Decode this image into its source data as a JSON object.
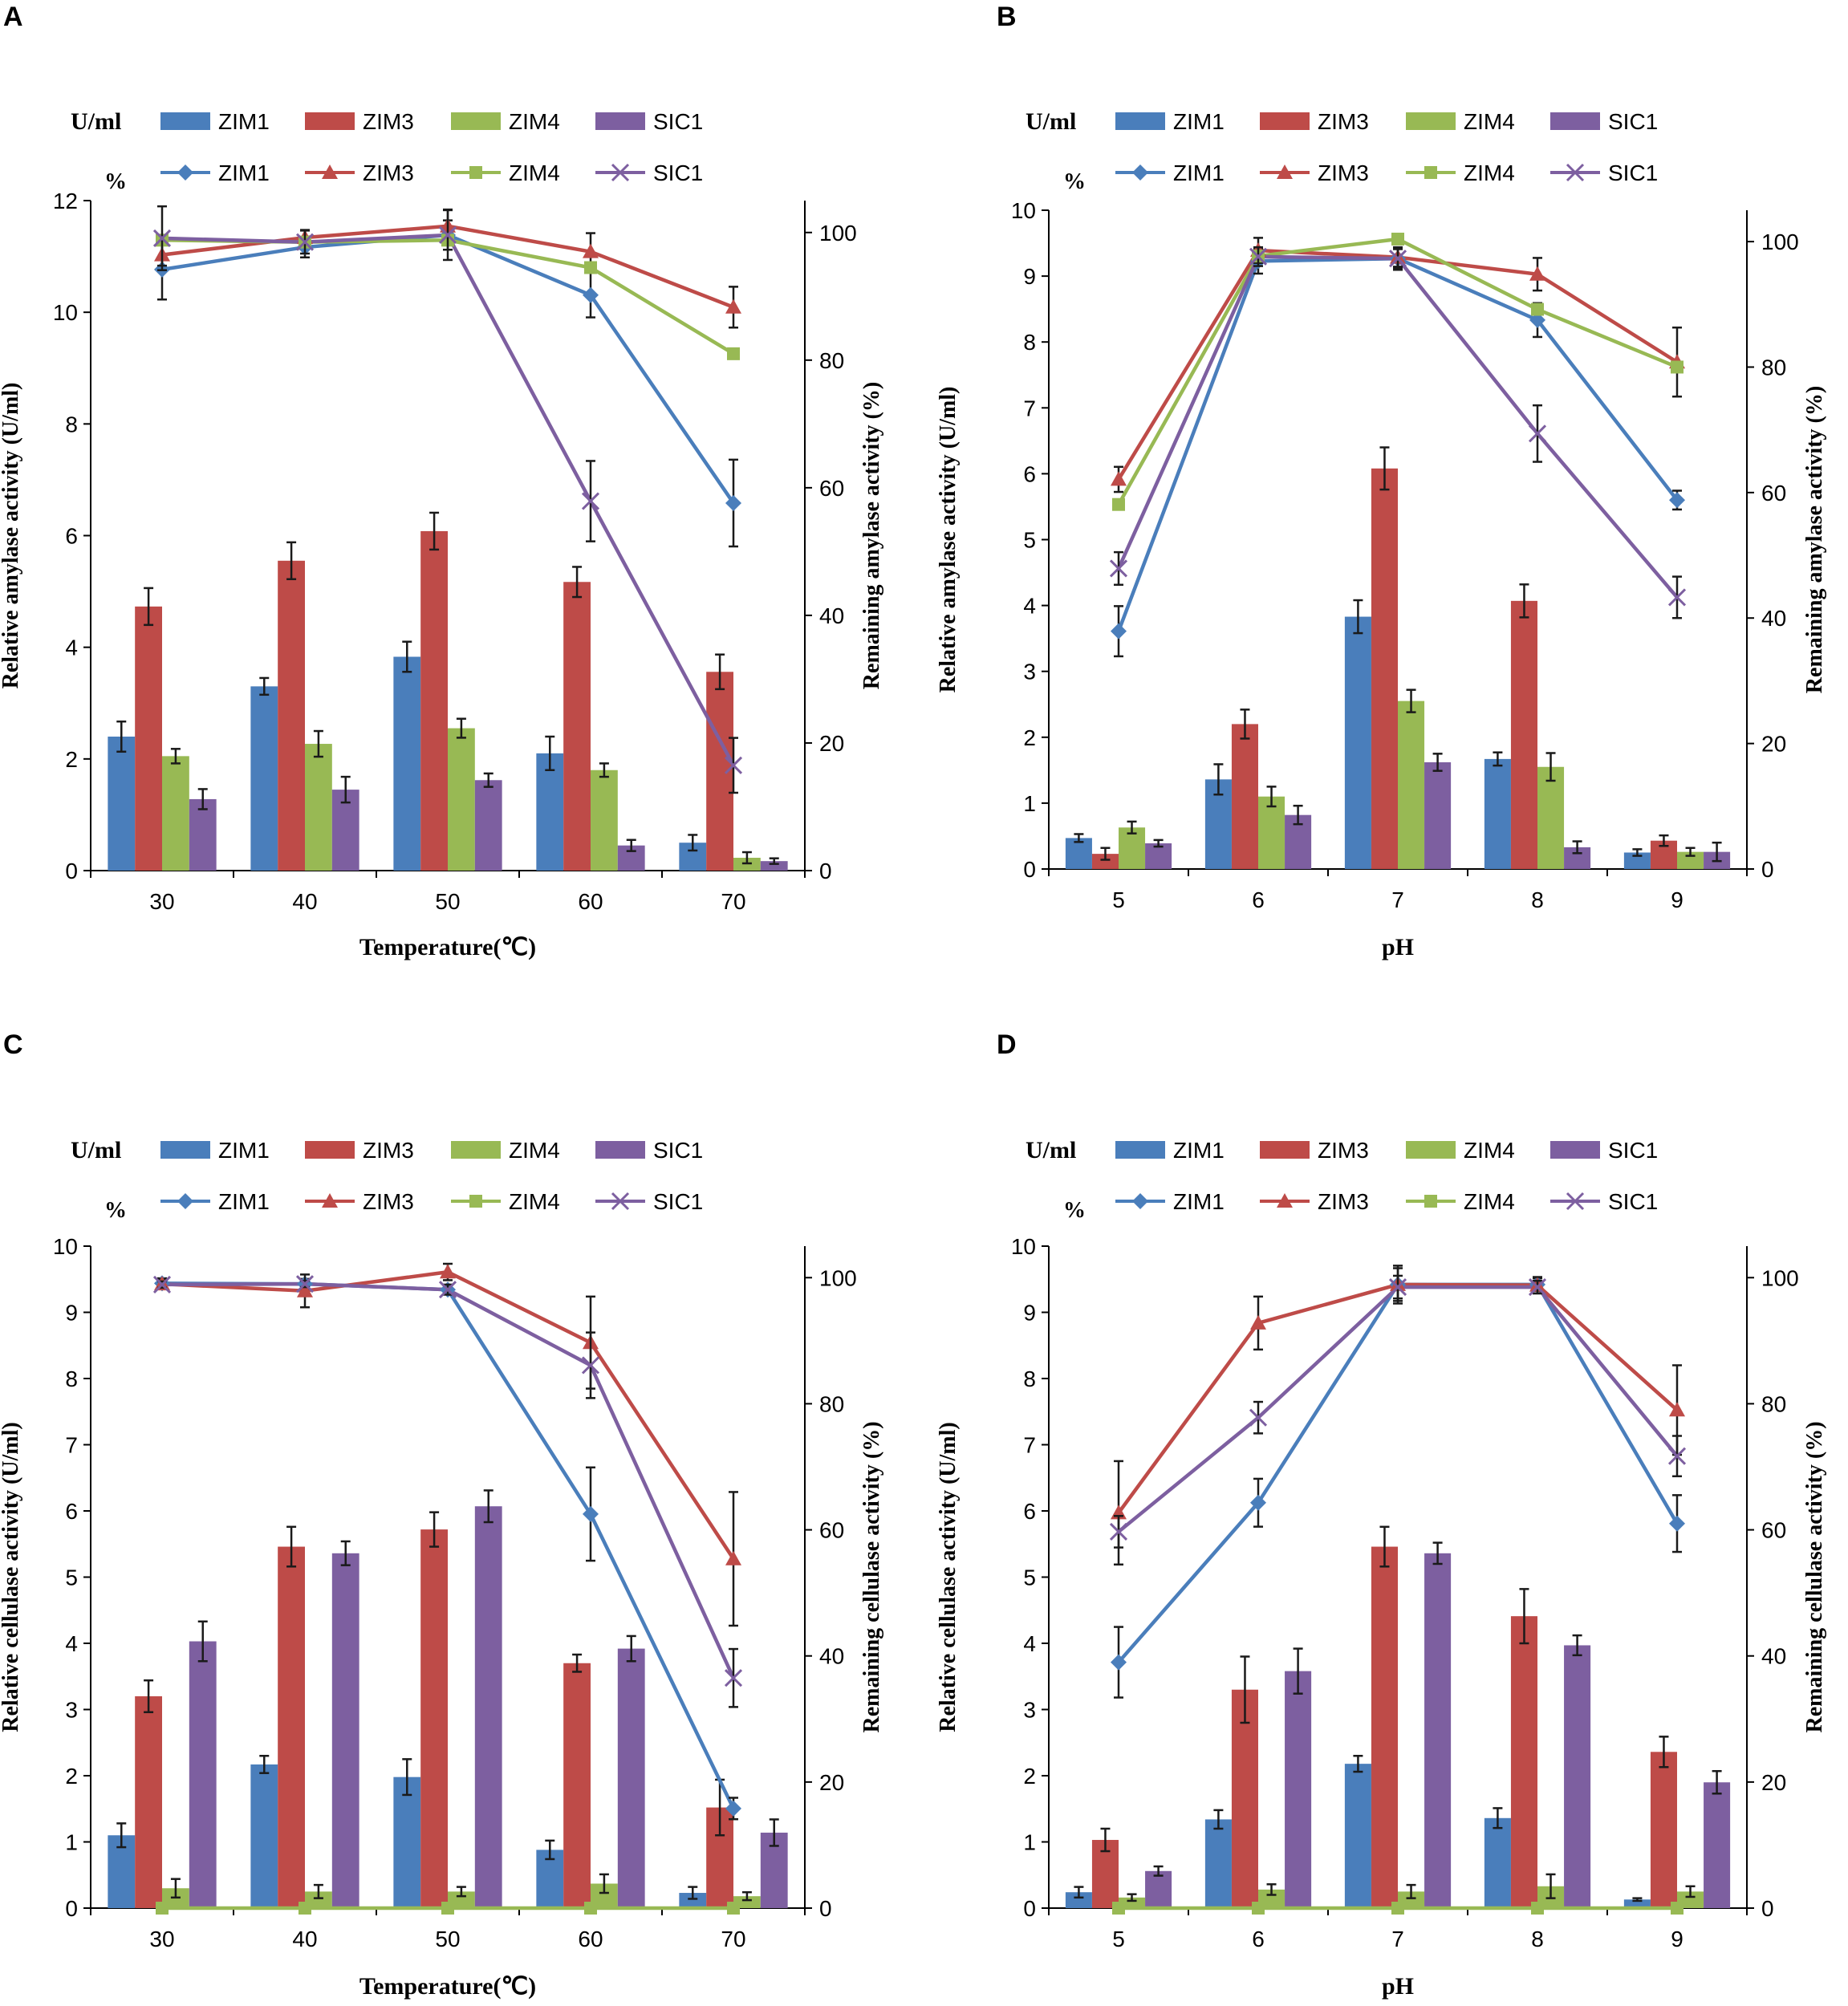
{
  "colors": {
    "ZIM1": "#4a7ebb",
    "ZIM3": "#be4b48",
    "ZIM4": "#98b954",
    "SIC1": "#7d5fa0"
  },
  "legend": {
    "bar_prefix": "U/ml",
    "line_prefix": "%",
    "names": [
      "ZIM1",
      "ZIM3",
      "ZIM4",
      "SIC1"
    ]
  },
  "chart_data": [
    {
      "panel": "A",
      "type": "bar+line",
      "xlabel": "Temperature(℃)",
      "ylabel_left": "Relative amylase activity (U/ml)",
      "ylabel_right": "Remaining amylase activity (%)",
      "categories": [
        "30",
        "40",
        "50",
        "60",
        "70"
      ],
      "left_range": [
        0,
        12
      ],
      "left_ticks": [
        0,
        2,
        4,
        6,
        8,
        10,
        12
      ],
      "right_range": [
        0,
        105
      ],
      "right_ticks": [
        0,
        20,
        40,
        60,
        80,
        100
      ],
      "bars": [
        {
          "name": "ZIM1",
          "values": [
            2.4,
            3.3,
            3.83,
            2.1,
            0.5
          ],
          "errors": [
            0.27,
            0.15,
            0.27,
            0.3,
            0.14
          ]
        },
        {
          "name": "ZIM3",
          "values": [
            4.73,
            5.55,
            6.08,
            5.17,
            3.56
          ],
          "errors": [
            0.33,
            0.33,
            0.33,
            0.27,
            0.31
          ]
        },
        {
          "name": "ZIM4",
          "values": [
            2.05,
            2.27,
            2.55,
            1.8,
            0.23
          ],
          "errors": [
            0.13,
            0.23,
            0.17,
            0.12,
            0.1
          ]
        },
        {
          "name": "SIC1",
          "values": [
            1.28,
            1.45,
            1.62,
            0.45,
            0.17
          ],
          "errors": [
            0.18,
            0.23,
            0.12,
            0.1,
            0.05
          ]
        }
      ],
      "lines": [
        {
          "name": "ZIM1",
          "marker": "diamond",
          "values": [
            94.2,
            97.7,
            99.6,
            90.2,
            57.6
          ],
          "errors": [
            4.7,
            1.6,
            2.3,
            3.5,
            6.8
          ]
        },
        {
          "name": "ZIM3",
          "marker": "triangle",
          "values": [
            96.5,
            99.2,
            101.0,
            97.0,
            88.3
          ],
          "errors": [
            1.7,
            1.2,
            2.6,
            2.9,
            3.2
          ]
        },
        {
          "name": "ZIM4",
          "marker": "square",
          "values": [
            98.8,
            98.5,
            98.8,
            94.5,
            81.0
          ],
          "errors": [
            0,
            0,
            0,
            0,
            0
          ]
        },
        {
          "name": "SIC1",
          "marker": "x",
          "values": [
            99.1,
            98.5,
            99.6,
            57.9,
            16.5
          ],
          "errors": [
            5.0,
            1.8,
            3.9,
            6.3,
            4.3
          ]
        }
      ]
    },
    {
      "panel": "B",
      "type": "bar+line",
      "xlabel": "pH",
      "ylabel_left": "Relative amylase activity (U/ml)",
      "ylabel_right": "Remaining amylase activity (%)",
      "categories": [
        "5",
        "6",
        "7",
        "8",
        "9"
      ],
      "left_range": [
        0,
        10
      ],
      "left_ticks": [
        0,
        1,
        2,
        3,
        4,
        5,
        6,
        7,
        8,
        9,
        10
      ],
      "right_range": [
        0,
        105
      ],
      "right_ticks": [
        0,
        20,
        40,
        60,
        80,
        100
      ],
      "bars": [
        {
          "name": "ZIM1",
          "values": [
            0.47,
            1.36,
            3.83,
            1.67,
            0.25
          ],
          "errors": [
            0.06,
            0.23,
            0.25,
            0.1,
            0.05
          ]
        },
        {
          "name": "ZIM3",
          "values": [
            0.23,
            2.2,
            6.08,
            4.07,
            0.43
          ],
          "errors": [
            0.09,
            0.22,
            0.32,
            0.25,
            0.08
          ]
        },
        {
          "name": "ZIM4",
          "values": [
            0.63,
            1.1,
            2.55,
            1.55,
            0.26
          ],
          "errors": [
            0.09,
            0.15,
            0.17,
            0.21,
            0.06
          ]
        },
        {
          "name": "SIC1",
          "values": [
            0.39,
            0.82,
            1.62,
            0.33,
            0.26
          ],
          "errors": [
            0.05,
            0.14,
            0.13,
            0.09,
            0.14
          ]
        }
      ],
      "lines": [
        {
          "name": "ZIM1",
          "marker": "diamond",
          "values": [
            37.9,
            96.9,
            97.3,
            87.5,
            58.8
          ],
          "errors": [
            4.0,
            2.0,
            1.5,
            2.7,
            1.5
          ]
        },
        {
          "name": "ZIM3",
          "marker": "triangle",
          "values": [
            62.1,
            98.6,
            97.5,
            94.8,
            80.8
          ],
          "errors": [
            2.0,
            2.0,
            1.5,
            2.6,
            5.5
          ]
        },
        {
          "name": "ZIM4",
          "marker": "square",
          "values": [
            58.1,
            97.7,
            100.4,
            89.2,
            80.0
          ],
          "errors": [
            0,
            0,
            0,
            0,
            0
          ]
        },
        {
          "name": "SIC1",
          "marker": "x",
          "values": [
            47.9,
            97.6,
            97.3,
            69.4,
            43.3
          ],
          "errors": [
            2.6,
            1.5,
            1.8,
            4.5,
            3.3
          ]
        }
      ]
    },
    {
      "panel": "C",
      "type": "bar+line",
      "xlabel": "Temperature(℃)",
      "ylabel_left": "Relative cellulase activity (U/ml)",
      "ylabel_right": "Remaining cellulase activity (%)",
      "categories": [
        "30",
        "40",
        "50",
        "60",
        "70"
      ],
      "left_range": [
        0,
        10
      ],
      "left_ticks": [
        0,
        1,
        2,
        3,
        4,
        5,
        6,
        7,
        8,
        9,
        10
      ],
      "right_range": [
        0,
        105
      ],
      "right_ticks": [
        0,
        20,
        40,
        60,
        80,
        100
      ],
      "bars": [
        {
          "name": "ZIM1",
          "values": [
            1.1,
            2.17,
            1.98,
            0.88,
            0.23
          ],
          "errors": [
            0.18,
            0.13,
            0.27,
            0.14,
            0.09
          ]
        },
        {
          "name": "ZIM3",
          "values": [
            3.2,
            5.46,
            5.72,
            3.7,
            1.52
          ],
          "errors": [
            0.24,
            0.3,
            0.26,
            0.13,
            0.42
          ]
        },
        {
          "name": "ZIM4",
          "values": [
            0.3,
            0.25,
            0.25,
            0.37,
            0.18
          ],
          "errors": [
            0.14,
            0.1,
            0.07,
            0.14,
            0.06
          ]
        },
        {
          "name": "SIC1",
          "values": [
            4.03,
            5.36,
            6.07,
            3.92,
            1.14
          ],
          "errors": [
            0.3,
            0.18,
            0.24,
            0.19,
            0.2
          ]
        }
      ],
      "lines": [
        {
          "name": "ZIM1",
          "marker": "diamond",
          "values": [
            99.1,
            99.0,
            98.1,
            62.5,
            15.8
          ],
          "errors": [
            0.8,
            0.8,
            0.5,
            7.4,
            1.7
          ]
        },
        {
          "name": "ZIM3",
          "marker": "triangle",
          "values": [
            99.0,
            97.9,
            100.9,
            89.7,
            55.4
          ],
          "errors": [
            0.8,
            2.6,
            1.3,
            7.3,
            10.6
          ]
        },
        {
          "name": "ZIM4",
          "marker": "square",
          "values": [
            0,
            0,
            0,
            0,
            0
          ],
          "errors": [
            0,
            0,
            0,
            0,
            0
          ]
        },
        {
          "name": "SIC1",
          "marker": "x",
          "values": [
            98.9,
            99.0,
            98.1,
            86.1,
            36.5
          ],
          "errors": [
            0.5,
            0.5,
            0.8,
            5.2,
            4.6
          ]
        }
      ]
    },
    {
      "panel": "D",
      "type": "bar+line",
      "xlabel": "pH",
      "ylabel_left": "Relative cellulase activity (U/ml)",
      "ylabel_right": "Remaining cellulase activity (%)",
      "categories": [
        "5",
        "6",
        "7",
        "8",
        "9"
      ],
      "left_range": [
        0,
        10
      ],
      "left_ticks": [
        0,
        1,
        2,
        3,
        4,
        5,
        6,
        7,
        8,
        9,
        10
      ],
      "right_range": [
        0,
        105
      ],
      "right_ticks": [
        0,
        20,
        40,
        60,
        80,
        100
      ],
      "bars": [
        {
          "name": "ZIM1",
          "values": [
            0.24,
            1.34,
            2.18,
            1.36,
            0.13
          ],
          "errors": [
            0.08,
            0.14,
            0.12,
            0.15,
            0.02
          ]
        },
        {
          "name": "ZIM3",
          "values": [
            1.03,
            3.3,
            5.46,
            4.41,
            2.36
          ],
          "errors": [
            0.17,
            0.5,
            0.3,
            0.41,
            0.23
          ]
        },
        {
          "name": "ZIM4",
          "values": [
            0.16,
            0.28,
            0.25,
            0.33,
            0.25
          ],
          "errors": [
            0.05,
            0.08,
            0.1,
            0.18,
            0.08
          ]
        },
        {
          "name": "SIC1",
          "values": [
            0.56,
            3.58,
            5.36,
            3.97,
            1.9
          ],
          "errors": [
            0.07,
            0.34,
            0.16,
            0.15,
            0.17
          ]
        }
      ],
      "lines": [
        {
          "name": "ZIM1",
          "marker": "diamond",
          "values": [
            39.0,
            64.3,
            98.9,
            98.9,
            61.0
          ],
          "errors": [
            5.6,
            3.8,
            2.6,
            1.0,
            4.5
          ]
        },
        {
          "name": "ZIM3",
          "marker": "triangle",
          "values": [
            62.7,
            92.8,
            98.9,
            98.8,
            79.0
          ],
          "errors": [
            8.2,
            4.2,
            3.0,
            1.3,
            7.1
          ]
        },
        {
          "name": "ZIM4",
          "marker": "square",
          "values": [
            0,
            0,
            0,
            0,
            0
          ],
          "errors": [
            0,
            0,
            0,
            0,
            0
          ]
        },
        {
          "name": "SIC1",
          "marker": "x",
          "values": [
            59.7,
            77.8,
            98.5,
            98.5,
            71.7
          ],
          "errors": [
            2.5,
            2.5,
            1.8,
            1.0,
            3.2
          ]
        }
      ]
    }
  ]
}
